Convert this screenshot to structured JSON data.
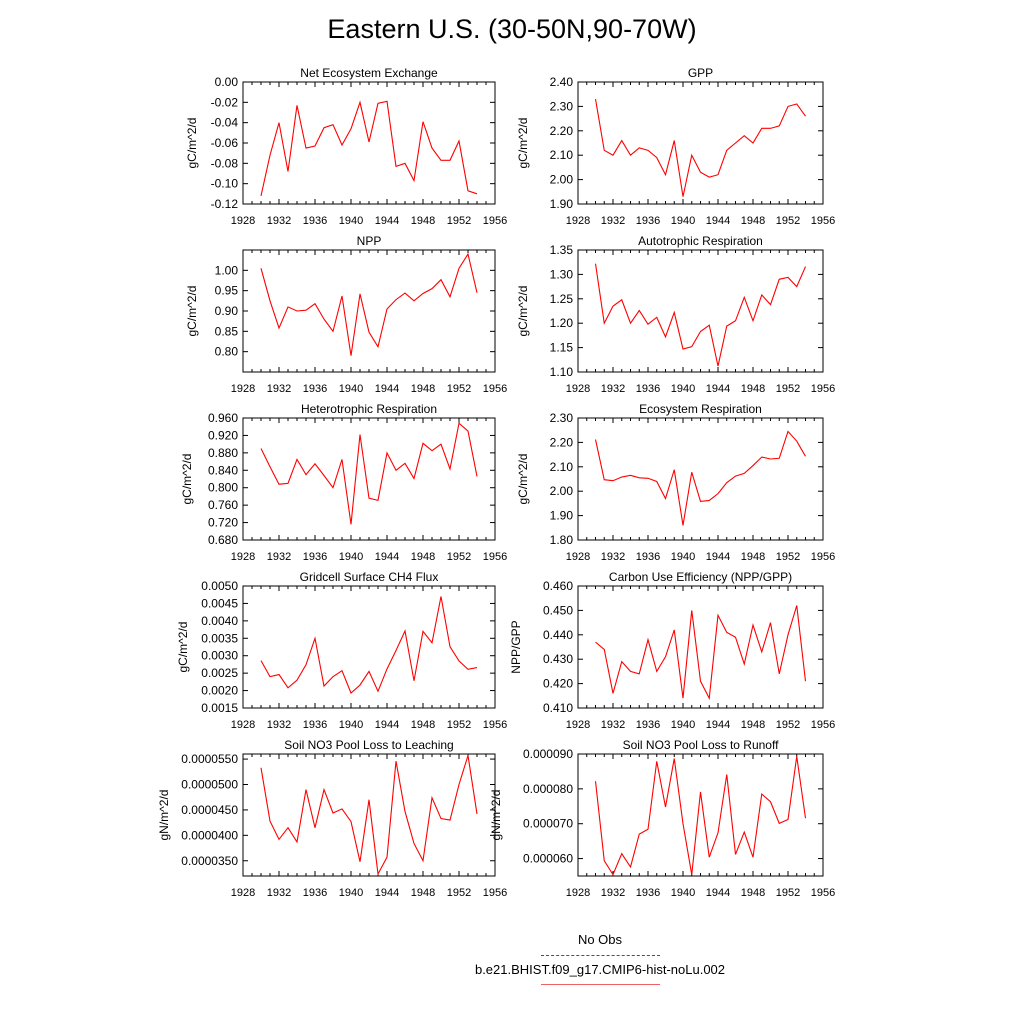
{
  "page": {
    "title": "Eastern U.S. (30-50N,90-70W)"
  },
  "legend": {
    "obs_label": "No Obs",
    "model_label": "b.e21.BHIST.f09_g17.CMIP6-hist-noLu.002",
    "obs_color": "#3a3af0",
    "model_color": "#ff0000"
  },
  "chart_data": [
    {
      "type": "line",
      "title": "Net Ecosystem Exchange",
      "ylabel": "gC/m^2/d",
      "xlim": [
        1928,
        1956
      ],
      "ylim": [
        -0.12,
        0.0
      ],
      "xticks": [
        "1928",
        "1932",
        "1936",
        "1940",
        "1944",
        "1948",
        "1952",
        "1956"
      ],
      "yticks": [
        "-0.12",
        "-0.10",
        "-0.08",
        "-0.06",
        "-0.04",
        "-0.02",
        "0.00"
      ],
      "series": [
        {
          "color": "#ff0000",
          "x": [
            1930,
            1931,
            1932,
            1933,
            1934,
            1935,
            1936,
            1937,
            1938,
            1939,
            1940,
            1941,
            1942,
            1943,
            1944,
            1945,
            1946,
            1947,
            1948,
            1949,
            1950,
            1951,
            1952,
            1953,
            1954
          ],
          "y": [
            -0.112,
            -0.072,
            -0.04,
            -0.088,
            -0.023,
            -0.065,
            -0.063,
            -0.045,
            -0.042,
            -0.062,
            -0.046,
            -0.02,
            -0.059,
            -0.021,
            -0.019,
            -0.083,
            -0.08,
            -0.097,
            -0.039,
            -0.065,
            -0.077,
            -0.077,
            -0.058,
            -0.107,
            -0.11
          ]
        }
      ]
    },
    {
      "type": "line",
      "title": "GPP",
      "ylabel": "gC/m^2/d",
      "xlim": [
        1928,
        1956
      ],
      "ylim": [
        1.9,
        2.4
      ],
      "xticks": [
        "1928",
        "1932",
        "1936",
        "1940",
        "1944",
        "1948",
        "1952",
        "1956"
      ],
      "yticks": [
        "1.90",
        "2.00",
        "2.10",
        "2.20",
        "2.30",
        "2.40"
      ],
      "series": [
        {
          "color": "#ff0000",
          "x": [
            1930,
            1931,
            1932,
            1933,
            1934,
            1935,
            1936,
            1937,
            1938,
            1939,
            1940,
            1941,
            1942,
            1943,
            1944,
            1945,
            1946,
            1947,
            1948,
            1949,
            1950,
            1951,
            1952,
            1953,
            1954
          ],
          "y": [
            2.33,
            2.12,
            2.1,
            2.16,
            2.1,
            2.13,
            2.12,
            2.09,
            2.02,
            2.16,
            1.93,
            2.1,
            2.03,
            2.01,
            2.02,
            2.12,
            2.15,
            2.18,
            2.15,
            2.21,
            2.21,
            2.22,
            2.3,
            2.31,
            2.26
          ]
        }
      ]
    },
    {
      "type": "line",
      "title": "NPP",
      "ylabel": "gC/m^2/d",
      "xlim": [
        1928,
        1956
      ],
      "ylim": [
        0.75,
        1.05
      ],
      "xticks": [
        "1928",
        "1932",
        "1936",
        "1940",
        "1944",
        "1948",
        "1952",
        "1956"
      ],
      "yticks": [
        "0.80",
        "0.85",
        "0.90",
        "0.95",
        "1.00"
      ],
      "series": [
        {
          "color": "#ff0000",
          "x": [
            1930,
            1931,
            1932,
            1933,
            1934,
            1935,
            1936,
            1937,
            1938,
            1939,
            1940,
            1941,
            1942,
            1943,
            1944,
            1945,
            1946,
            1947,
            1948,
            1949,
            1950,
            1951,
            1952,
            1953,
            1954
          ],
          "y": [
            1.005,
            0.925,
            0.858,
            0.91,
            0.9,
            0.902,
            0.918,
            0.88,
            0.85,
            0.937,
            0.79,
            0.942,
            0.848,
            0.812,
            0.905,
            0.928,
            0.944,
            0.925,
            0.943,
            0.955,
            0.977,
            0.935,
            1.005,
            1.04,
            0.945
          ]
        }
      ]
    },
    {
      "type": "line",
      "title": "Autotrophic Respiration",
      "ylabel": "gC/m^2/d",
      "xlim": [
        1928,
        1956
      ],
      "ylim": [
        1.1,
        1.35
      ],
      "xticks": [
        "1928",
        "1932",
        "1936",
        "1940",
        "1944",
        "1948",
        "1952",
        "1956"
      ],
      "yticks": [
        "1.10",
        "1.15",
        "1.20",
        "1.25",
        "1.30",
        "1.35"
      ],
      "series": [
        {
          "color": "#ff0000",
          "x": [
            1930,
            1931,
            1932,
            1933,
            1934,
            1935,
            1936,
            1937,
            1938,
            1939,
            1940,
            1941,
            1942,
            1943,
            1944,
            1945,
            1946,
            1947,
            1948,
            1949,
            1950,
            1951,
            1952,
            1953,
            1954
          ],
          "y": [
            1.322,
            1.2,
            1.235,
            1.248,
            1.2,
            1.226,
            1.198,
            1.212,
            1.172,
            1.222,
            1.147,
            1.152,
            1.183,
            1.196,
            1.112,
            1.194,
            1.205,
            1.253,
            1.205,
            1.258,
            1.238,
            1.29,
            1.294,
            1.275,
            1.316
          ]
        }
      ]
    },
    {
      "type": "line",
      "title": "Heterotrophic Respiration",
      "ylabel": "gC/m^2/d",
      "xlim": [
        1928,
        1956
      ],
      "ylim": [
        0.68,
        0.96
      ],
      "xticks": [
        "1928",
        "1932",
        "1936",
        "1940",
        "1944",
        "1948",
        "1952",
        "1956"
      ],
      "yticks": [
        "0.680",
        "0.720",
        "0.760",
        "0.800",
        "0.840",
        "0.880",
        "0.920",
        "0.960"
      ],
      "series": [
        {
          "color": "#ff0000",
          "x": [
            1930,
            1931,
            1932,
            1933,
            1934,
            1935,
            1936,
            1937,
            1938,
            1939,
            1940,
            1941,
            1942,
            1943,
            1944,
            1945,
            1946,
            1947,
            1948,
            1949,
            1950,
            1951,
            1952,
            1953,
            1954
          ],
          "y": [
            0.89,
            0.848,
            0.808,
            0.81,
            0.865,
            0.83,
            0.855,
            0.828,
            0.8,
            0.865,
            0.716,
            0.922,
            0.776,
            0.771,
            0.88,
            0.84,
            0.856,
            0.821,
            0.902,
            0.885,
            0.9,
            0.843,
            0.948,
            0.93,
            0.826
          ]
        }
      ]
    },
    {
      "type": "line",
      "title": "Ecosystem Respiration",
      "ylabel": "gC/m^2/d",
      "xlim": [
        1928,
        1956
      ],
      "ylim": [
        1.8,
        2.3
      ],
      "xticks": [
        "1928",
        "1932",
        "1936",
        "1940",
        "1944",
        "1948",
        "1952",
        "1956"
      ],
      "yticks": [
        "1.80",
        "1.90",
        "2.00",
        "2.10",
        "2.20",
        "2.30"
      ],
      "series": [
        {
          "color": "#ff0000",
          "x": [
            1930,
            1931,
            1932,
            1933,
            1934,
            1935,
            1936,
            1937,
            1938,
            1939,
            1940,
            1941,
            1942,
            1943,
            1944,
            1945,
            1946,
            1947,
            1948,
            1949,
            1950,
            1951,
            1952,
            1953,
            1954
          ],
          "y": [
            2.212,
            2.047,
            2.043,
            2.058,
            2.065,
            2.055,
            2.053,
            2.04,
            1.97,
            2.088,
            1.86,
            2.078,
            1.958,
            1.962,
            1.99,
            2.035,
            2.062,
            2.073,
            2.105,
            2.14,
            2.132,
            2.135,
            2.245,
            2.205,
            2.143
          ]
        }
      ]
    },
    {
      "type": "line",
      "title": "Gridcell Surface CH4 Flux",
      "ylabel": "gC/m^2/d",
      "xlim": [
        1928,
        1956
      ],
      "ylim": [
        0.0015,
        0.005
      ],
      "xticks": [
        "1928",
        "1932",
        "1936",
        "1940",
        "1944",
        "1948",
        "1952",
        "1956"
      ],
      "yticks": [
        "0.0015",
        "0.0020",
        "0.0025",
        "0.0030",
        "0.0035",
        "0.0040",
        "0.0045",
        "0.0050"
      ],
      "series": [
        {
          "color": "#ff0000",
          "x": [
            1930,
            1931,
            1932,
            1933,
            1934,
            1935,
            1936,
            1937,
            1938,
            1939,
            1940,
            1941,
            1942,
            1943,
            1944,
            1945,
            1946,
            1947,
            1948,
            1949,
            1950,
            1951,
            1952,
            1953,
            1954
          ],
          "y": [
            0.00286,
            0.0024,
            0.00246,
            0.00208,
            0.0023,
            0.00274,
            0.0035,
            0.00213,
            0.0024,
            0.00257,
            0.00193,
            0.00216,
            0.00255,
            0.00198,
            0.00262,
            0.00315,
            0.00371,
            0.00228,
            0.0037,
            0.00337,
            0.0047,
            0.00326,
            0.00285,
            0.00261,
            0.00266
          ]
        }
      ]
    },
    {
      "type": "line",
      "title": "Carbon Use Efficiency (NPP/GPP)",
      "ylabel": "NPP/GPP",
      "xlim": [
        1928,
        1956
      ],
      "ylim": [
        0.41,
        0.46
      ],
      "xticks": [
        "1928",
        "1932",
        "1936",
        "1940",
        "1944",
        "1948",
        "1952",
        "1956"
      ],
      "yticks": [
        "0.410",
        "0.420",
        "0.430",
        "0.440",
        "0.450",
        "0.460"
      ],
      "series": [
        {
          "color": "#ff0000",
          "x": [
            1930,
            1931,
            1932,
            1933,
            1934,
            1935,
            1936,
            1937,
            1938,
            1939,
            1940,
            1941,
            1942,
            1943,
            1944,
            1945,
            1946,
            1947,
            1948,
            1949,
            1950,
            1951,
            1952,
            1953,
            1954
          ],
          "y": [
            0.437,
            0.434,
            0.416,
            0.429,
            0.425,
            0.424,
            0.438,
            0.425,
            0.431,
            0.442,
            0.414,
            0.45,
            0.421,
            0.414,
            0.448,
            0.441,
            0.439,
            0.428,
            0.444,
            0.433,
            0.445,
            0.424,
            0.44,
            0.452,
            0.421
          ]
        }
      ]
    },
    {
      "type": "line",
      "title": "Soil NO3 Pool Loss to Leaching",
      "ylabel": "gN/m^2/d",
      "xlim": [
        1928,
        1956
      ],
      "ylim": [
        3.2e-05,
        5.6e-05
      ],
      "xticks": [
        "1928",
        "1932",
        "1936",
        "1940",
        "1944",
        "1948",
        "1952",
        "1956"
      ],
      "yticks": [
        "0.0000350",
        "0.0000400",
        "0.0000450",
        "0.0000500",
        "0.0000550"
      ],
      "series": [
        {
          "color": "#ff0000",
          "x": [
            1930,
            1931,
            1932,
            1933,
            1934,
            1935,
            1936,
            1937,
            1938,
            1939,
            1940,
            1941,
            1942,
            1943,
            1944,
            1945,
            1946,
            1947,
            1948,
            1949,
            1950,
            1951,
            1952,
            1953,
            1954
          ],
          "y": [
            5.33e-05,
            4.28e-05,
            3.92e-05,
            4.15e-05,
            3.87e-05,
            4.9e-05,
            4.15e-05,
            4.9e-05,
            4.44e-05,
            4.52e-05,
            4.27e-05,
            3.48e-05,
            4.7e-05,
            3.24e-05,
            3.57e-05,
            5.46e-05,
            4.47e-05,
            3.84e-05,
            3.5e-05,
            4.74e-05,
            4.33e-05,
            4.3e-05,
            5e-05,
            5.57e-05,
            4.42e-05
          ]
        }
      ]
    },
    {
      "type": "line",
      "title": "Soil NO3 Pool Loss to Runoff",
      "ylabel": "gN/m^2/d",
      "xlim": [
        1928,
        1956
      ],
      "ylim": [
        5.5e-05,
        9e-05
      ],
      "xticks": [
        "1928",
        "1932",
        "1936",
        "1940",
        "1944",
        "1948",
        "1952",
        "1956"
      ],
      "yticks": [
        "0.000060",
        "0.000070",
        "0.000080",
        "0.000090"
      ],
      "series": [
        {
          "color": "#ff0000",
          "x": [
            1930,
            1931,
            1932,
            1933,
            1934,
            1935,
            1936,
            1937,
            1938,
            1939,
            1940,
            1941,
            1942,
            1943,
            1944,
            1945,
            1946,
            1947,
            1948,
            1949,
            1950,
            1951,
            1952,
            1953,
            1954
          ],
          "y": [
            8.22e-05,
            5.94e-05,
            5.54e-05,
            6.14e-05,
            5.76e-05,
            6.7e-05,
            6.84e-05,
            8.79e-05,
            7.48e-05,
            8.87e-05,
            7e-05,
            5.54e-05,
            7.91e-05,
            6.04e-05,
            6.74e-05,
            8.41e-05,
            6.12e-05,
            6.76e-05,
            6.04e-05,
            7.85e-05,
            7.63e-05,
            7.01e-05,
            7.12e-05,
            8.93e-05,
            7.16e-05
          ]
        }
      ]
    }
  ]
}
